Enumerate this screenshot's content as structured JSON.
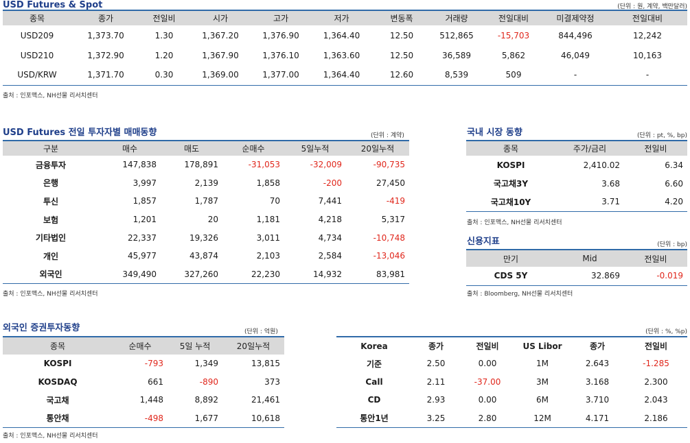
{
  "futures": {
    "title": "USD Futures & Spot",
    "unit": "(단위 : 원, 계약, 백만달러)",
    "headers": [
      "종목",
      "종가",
      "전일비",
      "시가",
      "고가",
      "저가",
      "변동폭",
      "거래량",
      "전일대비",
      "미결제약정",
      "전일대비"
    ],
    "rows": [
      [
        "USD209",
        "1,373.70",
        "1.30",
        "1,367.20",
        "1,376.90",
        "1,364.40",
        "12.50",
        "512,865",
        "-15,703",
        "844,496",
        "12,242"
      ],
      [
        "USD210",
        "1,372.90",
        "1.20",
        "1,367.90",
        "1,376.10",
        "1,363.60",
        "12.50",
        "36,589",
        "5,862",
        "46,049",
        "10,163"
      ],
      [
        "USD/KRW",
        "1,371.70",
        "0.30",
        "1,369.00",
        "1,377.00",
        "1,364.40",
        "12.60",
        "8,539",
        "509",
        "-",
        "-"
      ]
    ],
    "source": "출처 : 인포맥스, NH선물 리서치센터"
  },
  "investor": {
    "title": "USD Futures 전일 투자자별 매매동향",
    "unit": "(단위 : 계약)",
    "headers": [
      "구분",
      "매수",
      "매도",
      "순매수",
      "5일누적",
      "20일누적"
    ],
    "rows": [
      [
        "금융투자",
        "147,838",
        "178,891",
        "-31,053",
        "-32,009",
        "-90,735"
      ],
      [
        "은행",
        "3,997",
        "2,139",
        "1,858",
        "-200",
        "27,450"
      ],
      [
        "투신",
        "1,857",
        "1,787",
        "70",
        "7,441",
        "-419"
      ],
      [
        "보험",
        "1,201",
        "20",
        "1,181",
        "4,218",
        "5,317"
      ],
      [
        "기타법인",
        "22,337",
        "19,326",
        "3,011",
        "4,734",
        "-10,748"
      ],
      [
        "개인",
        "45,977",
        "43,874",
        "2,103",
        "2,584",
        "-13,046"
      ],
      [
        "외국인",
        "349,490",
        "327,260",
        "22,230",
        "14,932",
        "83,981"
      ]
    ],
    "source": "출처 : 인포맥스, NH선물 리서치센터"
  },
  "domestic": {
    "title": "국내 시장 동향",
    "unit": "(단위 : pt, %, bp)",
    "headers": [
      "종목",
      "주가/금리",
      "전일비"
    ],
    "rows": [
      [
        "KOSPI",
        "2,410.02",
        "6.34"
      ],
      [
        "국고채3Y",
        "3.68",
        "6.60"
      ],
      [
        "국고채10Y",
        "3.71",
        "4.20"
      ]
    ],
    "source": "출처 : 인포맥스, NH선물 리서치센터"
  },
  "credit": {
    "title": "신용지표",
    "unit": "(단위 : bp)",
    "headers": [
      "만기",
      "Mid",
      "전일비"
    ],
    "rows": [
      [
        "CDS 5Y",
        "32.869",
        "-0.019"
      ]
    ],
    "source": "출처 : Bloomberg, NH선물 리서치센터"
  },
  "foreign": {
    "title": "외국인 증권투자동향",
    "unit": "(단위 : 억원)",
    "headers": [
      "종목",
      "순매수",
      "5일 누적",
      "20일누적"
    ],
    "rows": [
      [
        "KOSPI",
        "-793",
        "1,349",
        "13,815"
      ],
      [
        "KOSDAQ",
        "661",
        "-890",
        "373"
      ],
      [
        "국고채",
        "1,448",
        "8,892",
        "21,461"
      ],
      [
        "통안채",
        "-498",
        "1,677",
        "10,618"
      ]
    ],
    "source": "출처 : 인포맥스, NH선물 리서치센터"
  },
  "rates": {
    "unit": "(단위 : %, %p)",
    "headers": [
      "Korea",
      "종가",
      "전일비",
      "US Libor",
      "종가",
      "전일비"
    ],
    "rows": [
      [
        "기준",
        "2.50",
        "0.00",
        "1M",
        "2.643",
        "-1.285"
      ],
      [
        "Call",
        "2.11",
        "-37.00",
        "3M",
        "3.168",
        "2.300"
      ],
      [
        "CD",
        "2.93",
        "0.00",
        "6M",
        "3.710",
        "2.043"
      ],
      [
        "통안1년",
        "3.25",
        "2.80",
        "12M",
        "4.171",
        "2.186"
      ]
    ]
  }
}
